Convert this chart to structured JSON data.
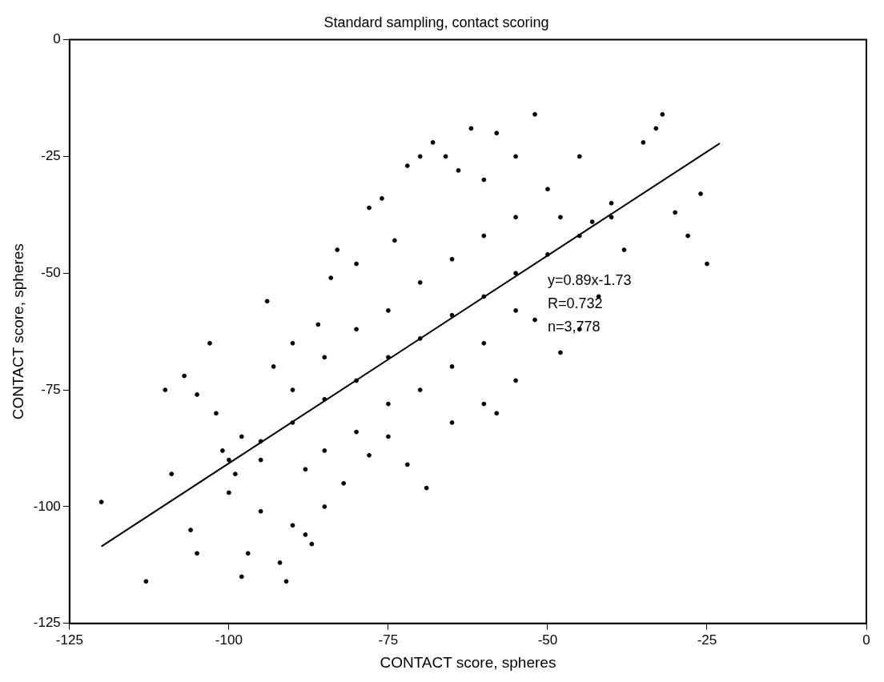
{
  "chart_data": {
    "type": "scatter",
    "title": "Standard sampling, contact scoring",
    "xlabel": "CONTACT score, spheres",
    "ylabel": "CONTACT score, spheres",
    "annotations": [
      "y=0.89x-1.73",
      "R=0.732",
      "n=3,778"
    ],
    "xlim": [
      -125,
      0
    ],
    "xticks": [
      -125,
      -100,
      -75,
      -50,
      -25,
      0
    ],
    "ylim": [
      -125,
      0
    ],
    "yticks": [
      -125,
      -100,
      -75,
      -50,
      -25,
      0
    ],
    "grid": false,
    "legend": false,
    "series": [
      {
        "color": "#000000",
        "marker": "circle",
        "x": [
          -120,
          -113,
          -110,
          -109,
          -107,
          -106,
          -105,
          -103,
          -101,
          -100,
          -98,
          -97,
          -95,
          -94,
          -93,
          -92,
          -91,
          -90,
          -88,
          -87,
          -90,
          -86,
          -84,
          -83,
          -80,
          -78,
          -76,
          -74,
          -72,
          -70,
          -68,
          -66,
          -64,
          -62,
          -60,
          -58,
          -55,
          -52,
          -50,
          -48,
          -45,
          -43,
          -40,
          -38,
          -35,
          -33,
          -32,
          -30,
          -28,
          -26,
          -25,
          -42,
          -45,
          -48,
          -52,
          -55,
          -58,
          -60,
          -65,
          -69,
          -72,
          -75,
          -78,
          -82,
          -85,
          -88,
          -95,
          -98,
          -102,
          -105,
          -99,
          -100,
          -95,
          -90,
          -85,
          -80,
          -75,
          -70,
          -65,
          -60,
          -55,
          -50,
          -45,
          -40,
          -90,
          -85,
          -80,
          -75,
          -70,
          -65,
          -60,
          -55,
          -85,
          -80,
          -75,
          -70,
          -65,
          -60,
          -55
        ],
        "values": [
          -99,
          -116,
          -75,
          -93,
          -72,
          -105,
          -110,
          -65,
          -88,
          -97,
          -115,
          -110,
          -101,
          -56,
          -70,
          -112,
          -116,
          -104,
          -106,
          -108,
          -65,
          -61,
          -51,
          -45,
          -48,
          -36,
          -34,
          -43,
          -27,
          -25,
          -22,
          -25,
          -28,
          -19,
          -30,
          -20,
          -25,
          -16,
          -32,
          -38,
          -25,
          -39,
          -35,
          -45,
          -22,
          -19,
          -16,
          -37,
          -42,
          -33,
          -48,
          -55,
          -62,
          -67,
          -60,
          -73,
          -80,
          -78,
          -82,
          -96,
          -91,
          -85,
          -89,
          -95,
          -100,
          -92,
          -90,
          -85,
          -80,
          -76,
          -93,
          -90,
          -86,
          -82,
          -77,
          -73,
          -68,
          -64,
          -59,
          -55,
          -50,
          -46,
          -42,
          -38,
          -75,
          -68,
          -62,
          -58,
          -52,
          -47,
          -42,
          -38,
          -88,
          -84,
          -78,
          -75,
          -70,
          -65,
          -58
        ]
      },
      {
        "type": "line",
        "color": "#000000",
        "marker": "none",
        "line_style": "solid",
        "x": [
          -120,
          -23
        ],
        "values": [
          -108.5,
          -22.2
        ]
      }
    ]
  }
}
